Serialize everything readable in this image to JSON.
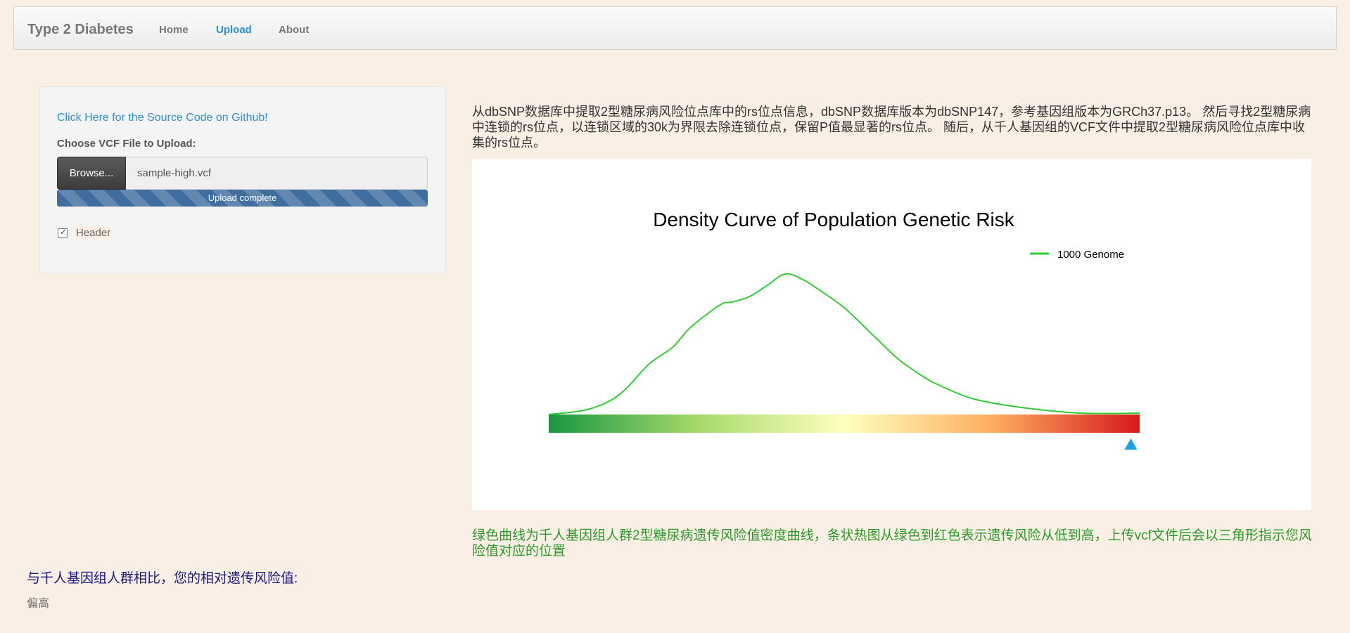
{
  "navbar": {
    "brand": "Type 2 Diabetes",
    "links": [
      {
        "label": "Home",
        "active": false
      },
      {
        "label": "Upload",
        "active": true
      },
      {
        "label": "About",
        "active": false
      }
    ]
  },
  "sidebar": {
    "github_link": "Click Here for the Source Code on Github!",
    "file_label": "Choose VCF File to Upload:",
    "browse_label": "Browse...",
    "file_name": "sample-high.vcf",
    "progress_text": "Upload complete",
    "progress_value": 1.0,
    "header_label": "Header",
    "header_checked": true
  },
  "main": {
    "description": "从dbSNP数据库中提取2型糖尿病风险位点库中的rs位点信息，dbSNP数据库版本为dbSNP147，参考基因组版本为GRCh37.p13。 然后寻找2型糖尿病中连锁的rs位点，以连锁区域的30k为界限去除连锁位点，保留P值最显著的rs位点。 随后，从千人基因组的VCF文件中提取2型糖尿病风险位点库中收集的rs位点。",
    "caption": "绿色曲线为千人基因组人群2型糖尿病遗传风险值密度曲线，条状热图从绿色到红色表示遗传风险从低到高，上传vcf文件后会以三角形指示您风险值对应的位置"
  },
  "result": {
    "compare_label": "与千人基因组人群相比，您的相对遗传风险值:",
    "value": "偏高"
  },
  "colors": {
    "accent": "#2b8fd6",
    "curve": "#33cc33",
    "marker": "#1aa3e0",
    "caption": "#2a9a2a",
    "gradient": [
      "#1a9641",
      "#a6d96a",
      "#ffffbf",
      "#fdae61",
      "#d7191c"
    ]
  },
  "chart_data": {
    "type": "line",
    "title": "Density Curve of Population Genetic Risk",
    "xlabel": "",
    "ylabel": "",
    "grid": false,
    "legend_position": "top-right",
    "series": [
      {
        "name": "1000 Genome",
        "x": [
          0.0,
          0.06,
          0.1,
          0.13,
          0.17,
          0.21,
          0.24,
          0.29,
          0.31,
          0.34,
          0.37,
          0.4,
          0.43,
          0.46,
          0.5,
          0.55,
          0.59,
          0.63,
          0.66,
          0.72,
          0.8,
          0.9,
          1.0
        ],
        "values": [
          0.0,
          0.03,
          0.09,
          0.18,
          0.36,
          0.48,
          0.62,
          0.78,
          0.8,
          0.84,
          0.92,
          1.0,
          0.96,
          0.88,
          0.76,
          0.56,
          0.4,
          0.28,
          0.21,
          0.11,
          0.05,
          0.01,
          0.01
        ]
      }
    ],
    "xlim": [
      0,
      1
    ],
    "ylim": [
      0,
      1
    ],
    "marker_position": 0.985
  }
}
